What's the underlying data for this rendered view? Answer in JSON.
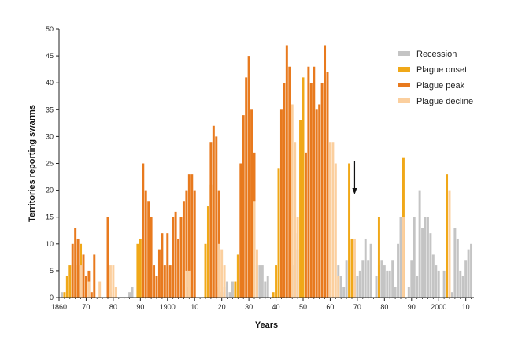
{
  "chart_data": {
    "type": "bar",
    "xlabel": "Years",
    "ylabel": "Territories reporting swarms",
    "xlim": [
      1860,
      2013
    ],
    "ylim": [
      0,
      50
    ],
    "y_ticks": [
      0,
      5,
      10,
      15,
      20,
      25,
      30,
      35,
      40,
      45,
      50
    ],
    "x_ticks": [
      {
        "year": 1860,
        "label": "1860"
      },
      {
        "year": 1870,
        "label": "70"
      },
      {
        "year": 1880,
        "label": "80"
      },
      {
        "year": 1890,
        "label": "90"
      },
      {
        "year": 1900,
        "label": "1900"
      },
      {
        "year": 1910,
        "label": "10"
      },
      {
        "year": 1920,
        "label": "20"
      },
      {
        "year": 1930,
        "label": "30"
      },
      {
        "year": 1940,
        "label": "40"
      },
      {
        "year": 1950,
        "label": "50"
      },
      {
        "year": 1960,
        "label": "60"
      },
      {
        "year": 1970,
        "label": "70"
      },
      {
        "year": 1980,
        "label": "80"
      },
      {
        "year": 1990,
        "label": "90"
      },
      {
        "year": 2000,
        "label": "2000"
      },
      {
        "year": 2010,
        "label": "10"
      }
    ],
    "legend": {
      "placement": "top-right",
      "entries": [
        {
          "key": "recession",
          "label": "Recession",
          "color": "#c4c4c4"
        },
        {
          "key": "onset",
          "label": "Plague onset",
          "color": "#f0a818"
        },
        {
          "key": "peak",
          "label": "Plague peak",
          "color": "#e87a1e"
        },
        {
          "key": "decline",
          "label": "Plague decline",
          "color": "#fbcf9e"
        }
      ]
    },
    "arrow_year": 1969,
    "series": [
      {
        "key": "recession",
        "points": [
          [
            1861,
            1
          ],
          [
            1867,
            1
          ],
          [
            1879,
            1
          ],
          [
            1886,
            1
          ],
          [
            1887,
            2
          ],
          [
            1908,
            2
          ],
          [
            1919,
            2
          ],
          [
            1920,
            1
          ],
          [
            1921,
            2
          ],
          [
            1922,
            3
          ],
          [
            1923,
            1
          ],
          [
            1924,
            3
          ],
          [
            1932,
            2
          ],
          [
            1933,
            6
          ],
          [
            1934,
            6
          ],
          [
            1935,
            6
          ],
          [
            1936,
            3
          ],
          [
            1937,
            4
          ],
          [
            1946,
            6
          ],
          [
            1947,
            12
          ],
          [
            1948,
            9
          ],
          [
            1963,
            6
          ],
          [
            1964,
            4
          ],
          [
            1965,
            2
          ],
          [
            1966,
            7
          ],
          [
            1969,
            7
          ],
          [
            1970,
            4
          ],
          [
            1971,
            5
          ],
          [
            1972,
            7
          ],
          [
            1973,
            11
          ],
          [
            1974,
            7
          ],
          [
            1975,
            10
          ],
          [
            1977,
            4
          ],
          [
            1978,
            6
          ],
          [
            1979,
            7
          ],
          [
            1980,
            6
          ],
          [
            1981,
            5
          ],
          [
            1982,
            5
          ],
          [
            1983,
            7
          ],
          [
            1984,
            2
          ],
          [
            1985,
            10
          ],
          [
            1986,
            15
          ],
          [
            1989,
            2
          ],
          [
            1990,
            7
          ],
          [
            1991,
            15
          ],
          [
            1992,
            4
          ],
          [
            1993,
            20
          ],
          [
            1994,
            13
          ],
          [
            1995,
            15
          ],
          [
            1996,
            15
          ],
          [
            1997,
            12
          ],
          [
            1998,
            8
          ],
          [
            1999,
            6
          ],
          [
            2000,
            5
          ],
          [
            2002,
            5
          ],
          [
            2005,
            1
          ],
          [
            2006,
            13
          ],
          [
            2007,
            11
          ],
          [
            2008,
            5
          ],
          [
            2009,
            4
          ],
          [
            2010,
            7
          ],
          [
            2011,
            9
          ],
          [
            2012,
            10
          ]
        ]
      },
      {
        "key": "onset",
        "points": [
          [
            1862,
            1
          ],
          [
            1863,
            4
          ],
          [
            1864,
            6
          ],
          [
            1867,
            6
          ],
          [
            1868,
            10
          ],
          [
            1870,
            1
          ],
          [
            1889,
            10
          ],
          [
            1890,
            11
          ],
          [
            1914,
            10
          ],
          [
            1915,
            17
          ],
          [
            1916,
            21
          ],
          [
            1925,
            3
          ],
          [
            1926,
            8
          ],
          [
            1939,
            1
          ],
          [
            1940,
            6
          ],
          [
            1941,
            24
          ],
          [
            1949,
            33
          ],
          [
            1950,
            41
          ],
          [
            1967,
            25
          ],
          [
            1968,
            11
          ],
          [
            1978,
            15
          ],
          [
            1987,
            26
          ],
          [
            2003,
            23
          ]
        ]
      },
      {
        "key": "peak",
        "points": [
          [
            1865,
            10
          ],
          [
            1866,
            13
          ],
          [
            1867,
            11
          ],
          [
            1869,
            8
          ],
          [
            1870,
            4
          ],
          [
            1871,
            5
          ],
          [
            1872,
            1
          ],
          [
            1873,
            8
          ],
          [
            1878,
            15
          ],
          [
            1891,
            25
          ],
          [
            1892,
            20
          ],
          [
            1893,
            18
          ],
          [
            1894,
            15
          ],
          [
            1895,
            6
          ],
          [
            1896,
            4
          ],
          [
            1897,
            9
          ],
          [
            1898,
            12
          ],
          [
            1899,
            6
          ],
          [
            1900,
            12
          ],
          [
            1901,
            6
          ],
          [
            1902,
            15
          ],
          [
            1903,
            16
          ],
          [
            1904,
            11
          ],
          [
            1905,
            15
          ],
          [
            1906,
            18
          ],
          [
            1907,
            20
          ],
          [
            1908,
            23
          ],
          [
            1909,
            23
          ],
          [
            1910,
            20
          ],
          [
            1916,
            29
          ],
          [
            1917,
            32
          ],
          [
            1918,
            30
          ],
          [
            1919,
            20
          ],
          [
            1927,
            25
          ],
          [
            1928,
            34
          ],
          [
            1929,
            41
          ],
          [
            1930,
            45
          ],
          [
            1931,
            35
          ],
          [
            1932,
            27
          ],
          [
            1942,
            35
          ],
          [
            1943,
            40
          ],
          [
            1944,
            47
          ],
          [
            1945,
            43
          ],
          [
            1951,
            27
          ],
          [
            1952,
            43
          ],
          [
            1953,
            40
          ],
          [
            1954,
            43
          ],
          [
            1955,
            35
          ],
          [
            1956,
            36
          ],
          [
            1957,
            40
          ],
          [
            1958,
            47
          ],
          [
            1959,
            42
          ]
        ]
      },
      {
        "key": "decline",
        "points": [
          [
            1868,
            6
          ],
          [
            1871,
            3
          ],
          [
            1875,
            3
          ],
          [
            1879,
            6
          ],
          [
            1880,
            6
          ],
          [
            1881,
            2
          ],
          [
            1907,
            5
          ],
          [
            1908,
            5
          ],
          [
            1919,
            10
          ],
          [
            1920,
            9
          ],
          [
            1921,
            6
          ],
          [
            1932,
            18
          ],
          [
            1933,
            9
          ],
          [
            1946,
            36
          ],
          [
            1947,
            29
          ],
          [
            1948,
            15
          ],
          [
            1960,
            29
          ],
          [
            1961,
            29
          ],
          [
            1962,
            25
          ],
          [
            1963,
            4
          ],
          [
            1969,
            11
          ],
          [
            1987,
            15
          ],
          [
            2004,
            20
          ]
        ]
      }
    ]
  }
}
